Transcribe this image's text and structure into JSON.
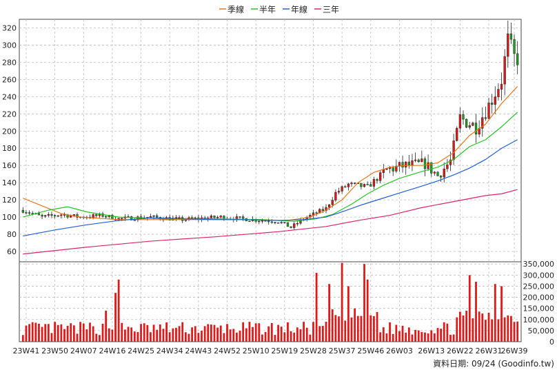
{
  "chart_data": {
    "type": "candlestick_with_volume",
    "legend": [
      {
        "name": "季線",
        "color": "#e8731a"
      },
      {
        "name": "半年",
        "color": "#21c421"
      },
      {
        "name": "年線",
        "color": "#1f5fd6"
      },
      {
        "name": "三年",
        "color": "#d6246e"
      }
    ],
    "price_axis": {
      "ticks": [
        60,
        80,
        100,
        120,
        140,
        160,
        180,
        200,
        220,
        240,
        260,
        280,
        300,
        320
      ],
      "ylim": [
        48,
        330
      ]
    },
    "volume_axis": {
      "ticks": [
        "0",
        "50,000",
        "100,000",
        "150,000",
        "200,000",
        "250,000",
        "300,000",
        "350,000"
      ],
      "ylim": [
        0,
        360000
      ]
    },
    "x_ticks": [
      "23W41",
      "23W50",
      "24W07",
      "24W16",
      "24W25",
      "24W34",
      "24W43",
      "24W52",
      "25W10",
      "25W19",
      "25W28",
      "25W37",
      "25W46",
      "26W03",
      "26W13",
      "26W22",
      "26W31",
      "26W39"
    ],
    "x_tick_weeks": [
      1,
      10,
      19,
      28,
      37,
      46,
      55,
      64,
      73,
      82,
      91,
      100,
      109,
      118,
      128,
      137,
      146,
      154
    ],
    "weeks_total": 156,
    "ma_points": {
      "quarter": [
        [
          0,
          122
        ],
        [
          6,
          113
        ],
        [
          12,
          104
        ],
        [
          18,
          100
        ],
        [
          30,
          97
        ],
        [
          50,
          97
        ],
        [
          70,
          97
        ],
        [
          83,
          96
        ],
        [
          90,
          100
        ],
        [
          95,
          108
        ],
        [
          100,
          120
        ],
        [
          105,
          140
        ],
        [
          110,
          152
        ],
        [
          115,
          158
        ],
        [
          120,
          160
        ],
        [
          125,
          160
        ],
        [
          130,
          163
        ],
        [
          135,
          175
        ],
        [
          140,
          195
        ],
        [
          145,
          208
        ],
        [
          150,
          232
        ],
        [
          155,
          252
        ]
      ],
      "half_year": [
        [
          0,
          100
        ],
        [
          8,
          108
        ],
        [
          14,
          112
        ],
        [
          20,
          106
        ],
        [
          30,
          100
        ],
        [
          45,
          98
        ],
        [
          60,
          98
        ],
        [
          75,
          97
        ],
        [
          85,
          95
        ],
        [
          92,
          98
        ],
        [
          97,
          103
        ],
        [
          103,
          115
        ],
        [
          108,
          127
        ],
        [
          113,
          137
        ],
        [
          118,
          145
        ],
        [
          125,
          153
        ],
        [
          130,
          158
        ],
        [
          135,
          167
        ],
        [
          140,
          182
        ],
        [
          145,
          190
        ],
        [
          150,
          205
        ],
        [
          155,
          222
        ]
      ],
      "year": [
        [
          0,
          78
        ],
        [
          10,
          85
        ],
        [
          20,
          91
        ],
        [
          30,
          96
        ],
        [
          40,
          99
        ],
        [
          50,
          98
        ],
        [
          60,
          97
        ],
        [
          70,
          97
        ],
        [
          80,
          96
        ],
        [
          88,
          97
        ],
        [
          95,
          100
        ],
        [
          100,
          106
        ],
        [
          106,
          114
        ],
        [
          112,
          121
        ],
        [
          118,
          128
        ],
        [
          125,
          136
        ],
        [
          130,
          142
        ],
        [
          135,
          149
        ],
        [
          140,
          157
        ],
        [
          145,
          167
        ],
        [
          150,
          180
        ],
        [
          155,
          190
        ]
      ],
      "three_year": [
        [
          0,
          57
        ],
        [
          20,
          65
        ],
        [
          40,
          72
        ],
        [
          60,
          77
        ],
        [
          80,
          83
        ],
        [
          95,
          89
        ],
        [
          105,
          96
        ],
        [
          115,
          102
        ],
        [
          125,
          111
        ],
        [
          135,
          118
        ],
        [
          145,
          125
        ],
        [
          150,
          127
        ],
        [
          155,
          132
        ]
      ]
    },
    "footer": "資料日期: 09/24  (Goodinfo.tw)"
  }
}
